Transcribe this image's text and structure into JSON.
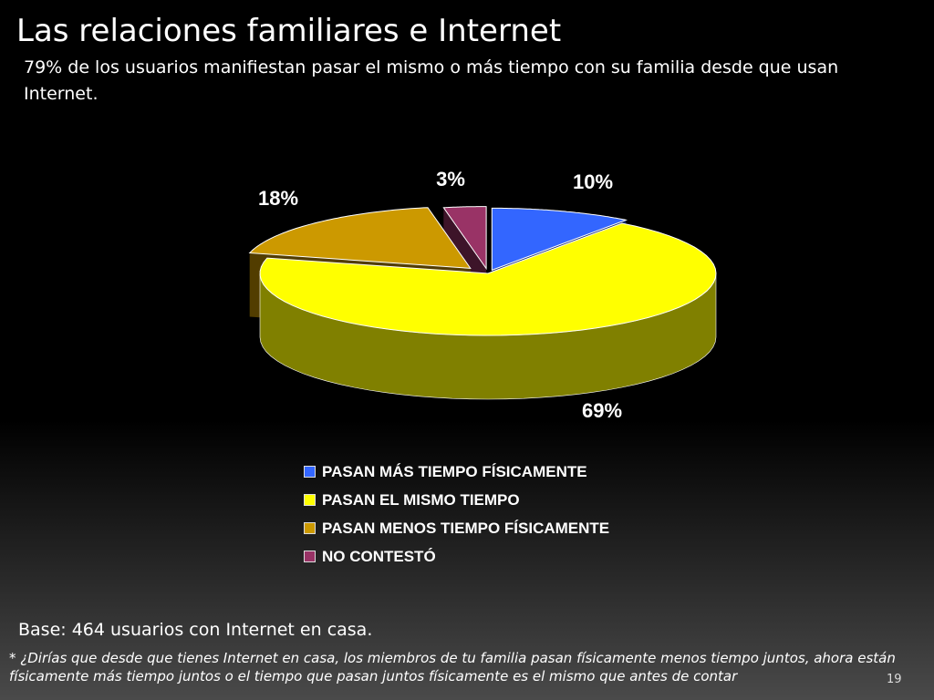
{
  "slide": {
    "title": "Las relaciones familiares e Internet",
    "subtitle": "79% de los usuarios  manifiestan pasar el mismo o más tiempo con su familia desde que usan Internet.",
    "base_note": "Base: 464 usuarios con Internet en casa.",
    "footnote": "* ¿Dirías que desde que tienes Internet en casa, los miembros de tu familia pasan físicamente menos tiempo juntos, ahora están físicamente más tiempo juntos o el tiempo que pasan juntos físicamente es el mismo que antes de contar",
    "page_number": "19"
  },
  "chart_data": {
    "type": "pie",
    "style": "3d-exploded",
    "legend_position": "bottom",
    "categories": [
      "PASAN MÁS TIEMPO FÍSICAMENTE",
      "PASAN EL MISMO TIEMPO",
      "PASAN MENOS TIEMPO FÍSICAMENTE",
      "NO CONTESTÓ"
    ],
    "values": [
      10,
      69,
      18,
      3
    ],
    "data_labels": [
      "10%",
      "69%",
      "18%",
      "3%"
    ],
    "colors": [
      "#3366ff",
      "#ffff00",
      "#cc9900",
      "#993366"
    ]
  }
}
